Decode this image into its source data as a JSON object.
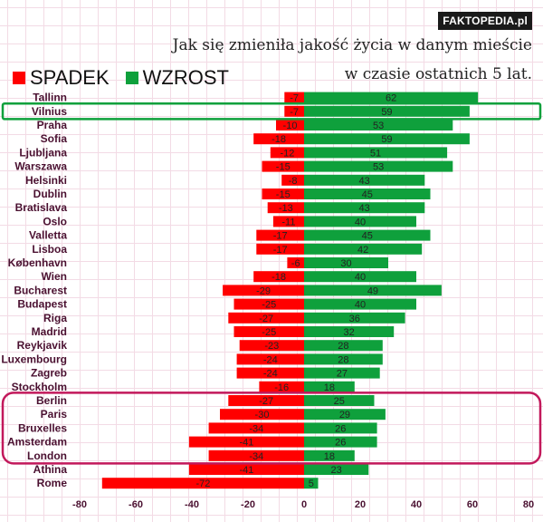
{
  "brand": "FAKTOPEDIA.pl",
  "title_line1": "Jak się zmieniła jakość życia w danym mieście",
  "title_line2": "w czasie ostatnich 5 lat.",
  "legend": [
    {
      "label": "SPADEK",
      "color": "#ff0000"
    },
    {
      "label": "WZROST",
      "color": "#0fa03c"
    }
  ],
  "colors": {
    "decline": "#ff0000",
    "growth": "#0fa03c",
    "highlight_green": "#0fa03c",
    "highlight_magenta": "#c2185b",
    "label": "#4a1030"
  },
  "chart_data": {
    "type": "bar",
    "orientation": "horizontal-diverging",
    "title": "Jak się zmieniła jakość życia w danym mieście w czasie ostatnich 5 lat.",
    "xlim": [
      -80,
      80
    ],
    "xticks": [
      -80,
      -60,
      -40,
      -20,
      0,
      20,
      40,
      60,
      80
    ],
    "categories": [
      "Tallinn",
      "Vilnius",
      "Praha",
      "Sofia",
      "Ljubljana",
      "Warszawa",
      "Helsinki",
      "Dublin",
      "Bratislava",
      "Oslo",
      "Valletta",
      "Lisboa",
      "København",
      "Wien",
      "Bucharest",
      "Budapest",
      "Riga",
      "Madrid",
      "Reykjavik",
      "Luxembourg",
      "Zagreb",
      "Stockholm",
      "Berlin",
      "Paris",
      "Bruxelles",
      "Amsterdam",
      "London",
      "Athina",
      "Rome"
    ],
    "series": [
      {
        "name": "SPADEK",
        "values": [
          -7,
          -7,
          -10,
          -18,
          -12,
          -15,
          -8,
          -15,
          -13,
          -11,
          -17,
          -17,
          -6,
          -18,
          -29,
          -25,
          -27,
          -25,
          -23,
          -24,
          -24,
          -16,
          -27,
          -30,
          -34,
          -41,
          -34,
          -41,
          -72
        ]
      },
      {
        "name": "WZROST",
        "values": [
          62,
          59,
          53,
          59,
          51,
          53,
          43,
          45,
          43,
          40,
          45,
          42,
          30,
          40,
          49,
          40,
          36,
          32,
          28,
          28,
          27,
          18,
          25,
          29,
          26,
          26,
          18,
          23,
          5
        ]
      }
    ],
    "highlights": [
      {
        "categories": [
          "Vilnius"
        ],
        "color": "green"
      },
      {
        "categories": [
          "Berlin",
          "Paris",
          "Bruxelles",
          "Amsterdam",
          "London"
        ],
        "color": "magenta"
      }
    ]
  }
}
